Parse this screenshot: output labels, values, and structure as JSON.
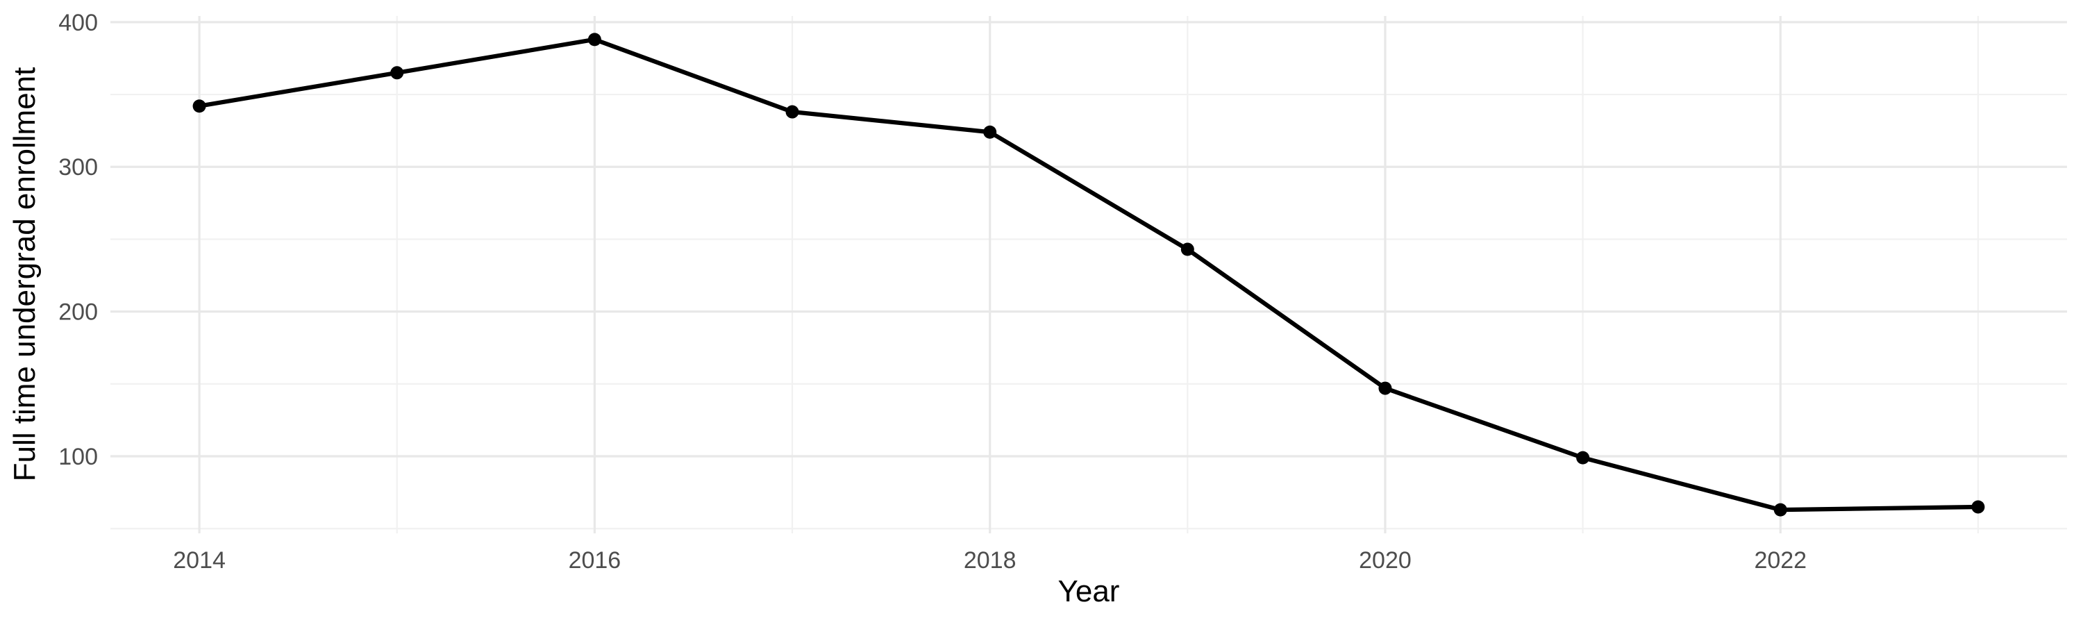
{
  "chart_data": {
    "type": "line",
    "title": "",
    "xlabel": "Year",
    "ylabel": "Full time undergrad enrollment",
    "series": [
      {
        "name": "Full time undergrad enrollment",
        "x": [
          2014,
          2015,
          2016,
          2017,
          2018,
          2019,
          2020,
          2021,
          2022,
          2023
        ],
        "values": [
          342,
          365,
          388,
          338,
          324,
          243,
          147,
          99,
          63,
          65
        ]
      }
    ],
    "x_major_ticks": [
      2014,
      2016,
      2018,
      2020,
      2022
    ],
    "x_tick_labels": [
      "2014",
      "2016",
      "2018",
      "2020",
      "2022"
    ],
    "x_minor_ticks": [
      2015,
      2017,
      2019,
      2021,
      2023
    ],
    "y_major_ticks": [
      100,
      200,
      300,
      400
    ],
    "y_tick_labels": [
      "100",
      "200",
      "300",
      "400"
    ],
    "y_minor_ticks": [
      50,
      150,
      250,
      350
    ],
    "xlim": [
      2013.55,
      2023.45
    ],
    "ylim": [
      46.75,
      404.25
    ],
    "grid": "major-and-minor, no axis lines, no tick marks",
    "legend_position": "none",
    "marker": "filled-circle",
    "colors": {
      "line": "#000000",
      "point": "#000000",
      "grid_major": "#e8e8e8",
      "grid_minor": "#f1f1f1",
      "tick_label": "#4d4d4d",
      "axis_title": "#000000",
      "background": "#ffffff"
    }
  }
}
